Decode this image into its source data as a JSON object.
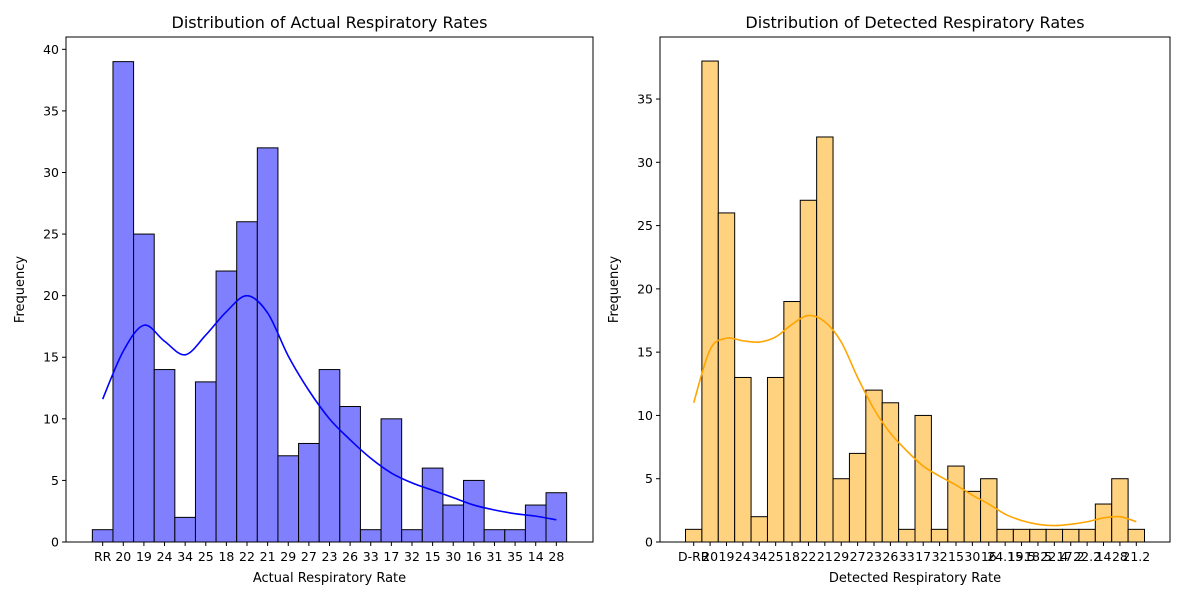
{
  "chart_data": [
    {
      "type": "bar",
      "title": "Distribution of Actual Respiratory Rates",
      "xlabel": "Actual Respiratory Rate",
      "ylabel": "Frequency",
      "categories": [
        "RR",
        "20",
        "19",
        "24",
        "34",
        "25",
        "18",
        "22",
        "21",
        "29",
        "27",
        "23",
        "26",
        "33",
        "17",
        "32",
        "15",
        "30",
        "16",
        "31",
        "35",
        "14",
        "28"
      ],
      "values": [
        1,
        39,
        25,
        14,
        2,
        13,
        22,
        26,
        32,
        7,
        8,
        14,
        11,
        1,
        10,
        1,
        6,
        3,
        5,
        1,
        1,
        3,
        4
      ],
      "kde": [
        11.6,
        15.5,
        17.6,
        16.3,
        15.2,
        16.8,
        18.7,
        20.0,
        18.6,
        15.1,
        12.3,
        10.0,
        8.3,
        6.8,
        5.6,
        4.8,
        4.2,
        3.6,
        3.0,
        2.6,
        2.3,
        2.1,
        1.8
      ],
      "ylim": [
        0,
        41
      ],
      "yticks": [
        0,
        5,
        10,
        15,
        20,
        25,
        30,
        35,
        40
      ],
      "bar_color": "#8080ff",
      "line_color": "#0000ff",
      "grid": false
    },
    {
      "type": "bar",
      "title": "Distribution of Detected Respiratory Rates",
      "xlabel": "Detected Respiratory Rate",
      "ylabel": "Frequency",
      "categories": [
        "D-RR",
        "20",
        "19",
        "24",
        "34",
        "25",
        "18",
        "22",
        "21",
        "29",
        "27",
        "23",
        "26",
        "33",
        "17",
        "32",
        "15",
        "30",
        "16",
        "24.15",
        "19.5",
        "18.5",
        "22.4",
        "17.2",
        "22.2",
        "14",
        "28",
        "21.2"
      ],
      "values": [
        1,
        38,
        26,
        13,
        2,
        13,
        19,
        27,
        32,
        5,
        7,
        12,
        11,
        1,
        10,
        1,
        6,
        4,
        5,
        1,
        1,
        1,
        1,
        1,
        1,
        3,
        5,
        1
      ],
      "kde": [
        11.0,
        15.2,
        16.1,
        15.9,
        15.8,
        16.2,
        17.2,
        17.9,
        17.4,
        15.8,
        13.0,
        10.5,
        8.6,
        7.2,
        6.0,
        5.2,
        4.5,
        3.7,
        3.0,
        2.2,
        1.7,
        1.4,
        1.3,
        1.4,
        1.6,
        1.9,
        2.0,
        1.6
      ],
      "ylim": [
        0,
        39.9
      ],
      "yticks": [
        0,
        5,
        10,
        15,
        20,
        25,
        30,
        35
      ],
      "bar_color": "#ffd280",
      "line_color": "#ffa500",
      "grid": false
    }
  ]
}
